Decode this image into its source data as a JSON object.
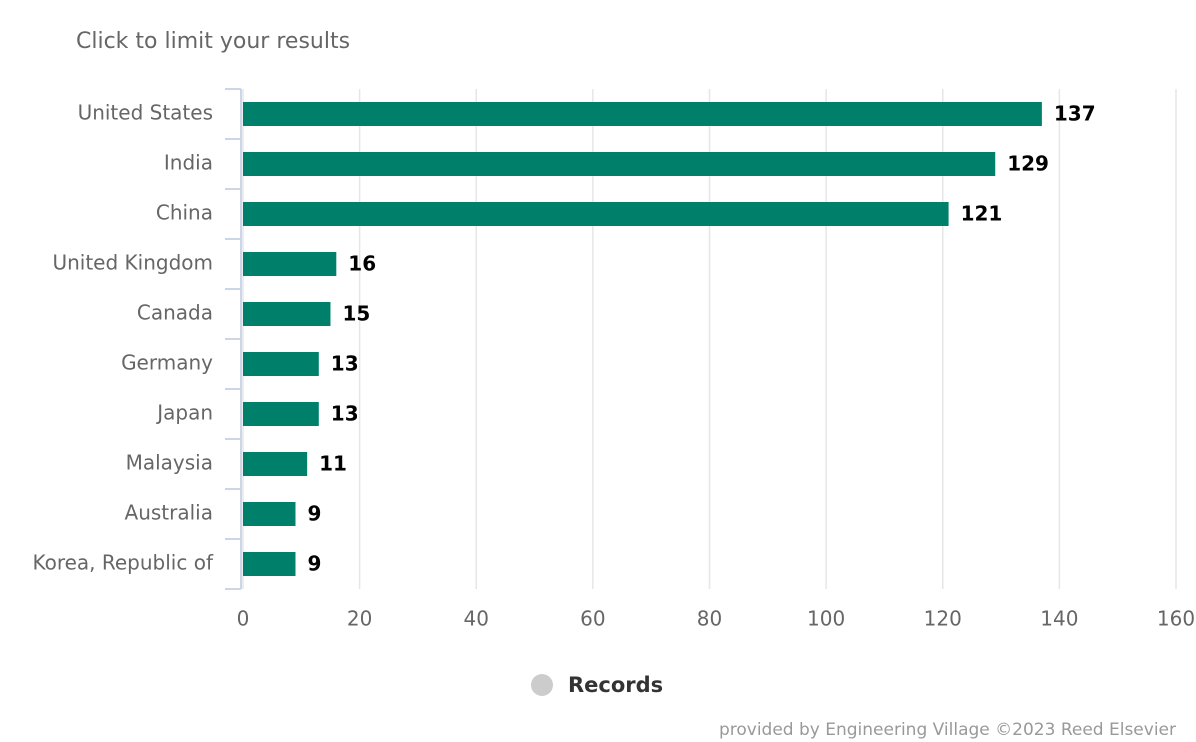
{
  "chart_data": {
    "type": "bar",
    "orientation": "horizontal",
    "subtitle": "Click to limit your results",
    "categories": [
      "United States",
      "India",
      "China",
      "United Kingdom",
      "Canada",
      "Germany",
      "Japan",
      "Malaysia",
      "Australia",
      "Korea, Republic of"
    ],
    "series": [
      {
        "name": "Records",
        "color": "#007f6b",
        "values": [
          137,
          129,
          121,
          16,
          15,
          13,
          13,
          11,
          9,
          9
        ]
      }
    ],
    "xlim": [
      0,
      160
    ],
    "xticks": [
      0,
      20,
      40,
      60,
      80,
      100,
      120,
      140,
      160
    ],
    "grid": true,
    "legend_symbol_color": "#cccccc",
    "credits": "provided by Engineering Village ©2023 Reed Elsevier"
  }
}
